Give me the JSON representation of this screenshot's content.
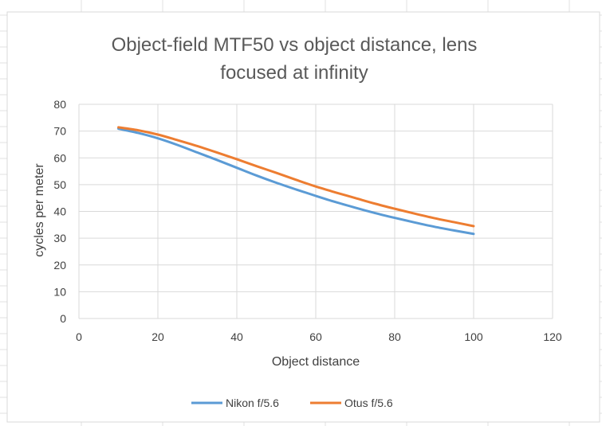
{
  "chart_data": {
    "type": "line",
    "title_lines": [
      "Object-field MTF50 vs object distance, lens",
      "focused at infinity"
    ],
    "xlabel": "Object distance",
    "ylabel": "cycles per meter",
    "xlim": [
      0,
      120
    ],
    "ylim": [
      0,
      80
    ],
    "xticks": [
      "0",
      "20",
      "40",
      "60",
      "80",
      "100",
      "120"
    ],
    "yticks": [
      "0",
      "10",
      "20",
      "30",
      "40",
      "50",
      "60",
      "70",
      "80"
    ],
    "grid": true,
    "legend_position": "bottom",
    "series": [
      {
        "name": "Nikon f/5.6",
        "color": "#5B9BD5",
        "x": [
          10,
          15,
          20,
          25,
          30,
          35,
          40,
          45,
          50,
          55,
          60,
          65,
          70,
          75,
          80,
          85,
          90,
          95,
          100
        ],
        "y": [
          70.9,
          69.3,
          67.3,
          64.8,
          62.0,
          59.2,
          56.3,
          53.4,
          50.7,
          48.2,
          45.8,
          43.5,
          41.4,
          39.4,
          37.6,
          35.9,
          34.3,
          32.9,
          31.6
        ]
      },
      {
        "name": "Otus f/5.6",
        "color": "#ED7D31",
        "x": [
          10,
          15,
          20,
          25,
          30,
          35,
          40,
          45,
          50,
          55,
          60,
          65,
          70,
          75,
          80,
          85,
          90,
          95,
          100
        ],
        "y": [
          71.4,
          70.3,
          68.7,
          66.6,
          64.4,
          62.0,
          59.5,
          56.9,
          54.4,
          51.8,
          49.3,
          47.1,
          45.0,
          42.9,
          41.0,
          39.2,
          37.5,
          36.0,
          34.5
        ]
      }
    ]
  }
}
